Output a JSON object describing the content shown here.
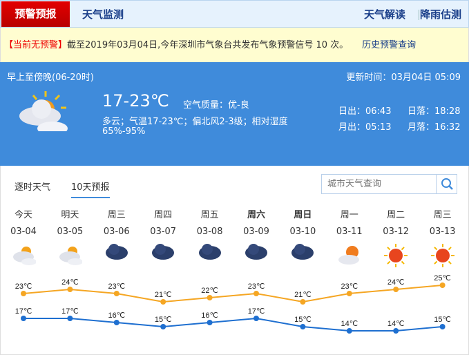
{
  "nav": {
    "active": "预警预报",
    "monitor": "天气监测",
    "interpret": "天气解读",
    "rain": "降雨估测"
  },
  "alert": {
    "status": "【当前无预警】",
    "text": "截至2019年03月04日,今年深圳市气象台共发布气象预警信号 10 次。",
    "history_link": "历史预警查询"
  },
  "today": {
    "period": "早上至傍晚(06-20时)",
    "updated": "更新时间：03月04日 05:09",
    "temp": "17-23℃",
    "air_quality": "空气质量：优-良",
    "desc": "多云；气温17-23℃；偏北风2-3级；相对湿度",
    "humidity": "65%-95%",
    "sunrise": "日出：06:43",
    "sunset": "日落：18:28",
    "moonrise": "月出：05:13",
    "moonset": "月落：16:32",
    "icon": "partly-cloudy-icon"
  },
  "tabs": [
    {
      "label": "逐时天气"
    },
    {
      "label": "10天预报",
      "active": true
    }
  ],
  "search": {
    "placeholder": "城市天气查询"
  },
  "colors": {
    "high": "#f5a623",
    "low": "#1e6fd0",
    "accent": "#3f8bdb",
    "alert_red": "#e00000"
  },
  "forecast": [
    {
      "week": "今天",
      "date": "03-04",
      "icon": "cloudy",
      "high": 23,
      "low": 17,
      "bold": false
    },
    {
      "week": "明天",
      "date": "03-05",
      "icon": "cloudy",
      "high": 24,
      "low": 17,
      "bold": false
    },
    {
      "week": "周三",
      "date": "03-06",
      "icon": "rain",
      "high": 23,
      "low": 16,
      "bold": false
    },
    {
      "week": "周四",
      "date": "03-07",
      "icon": "rain",
      "high": 21,
      "low": 15,
      "bold": false
    },
    {
      "week": "周五",
      "date": "03-08",
      "icon": "rain",
      "high": 22,
      "low": 16,
      "bold": false
    },
    {
      "week": "周六",
      "date": "03-09",
      "icon": "rain",
      "high": 23,
      "low": 17,
      "bold": true
    },
    {
      "week": "周日",
      "date": "03-10",
      "icon": "rain",
      "high": 21,
      "low": 15,
      "bold": true
    },
    {
      "week": "周一",
      "date": "03-11",
      "icon": "partly-cloudy",
      "high": 23,
      "low": 14,
      "bold": false
    },
    {
      "week": "周二",
      "date": "03-12",
      "icon": "sunny",
      "high": 24,
      "low": 14,
      "bold": false
    },
    {
      "week": "周三",
      "date": "03-13",
      "icon": "sunny",
      "high": 25,
      "low": 15,
      "bold": false
    }
  ],
  "unit": "℃"
}
